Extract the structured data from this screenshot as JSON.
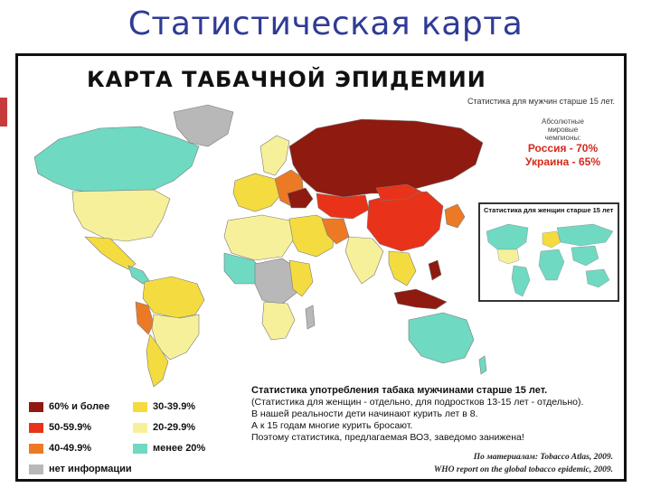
{
  "slide": {
    "title": "Статистическая карта"
  },
  "poster": {
    "title": "КАРТА ТАБАЧНОЙ ЭПИДЕМИИ",
    "subtitle_men": "Статистика для мужчин старше 15 лет.",
    "champions": {
      "caption": [
        "Абсолютные",
        "мировые",
        "чемпионы:"
      ],
      "russia": "Россия - 70%",
      "ukraine": "Украина - 65%"
    },
    "inset_caption": "Статистика для женщин старше 15 лет"
  },
  "legend": [
    {
      "label": "60% и более",
      "color": "#8e1a10"
    },
    {
      "label": "50-59.9%",
      "color": "#e8331a"
    },
    {
      "label": "40-49.9%",
      "color": "#ec7a25"
    },
    {
      "label": "нет информации",
      "color": "#b8b8b8"
    },
    {
      "label": "30-39.9%",
      "color": "#f4dc40"
    },
    {
      "label": "20-29.9%",
      "color": "#f7f09a"
    },
    {
      "label": "менее 20%",
      "color": "#6fd9c2"
    }
  ],
  "notes": {
    "heading": "Статистика употребления табака мужчинами старше 15 лет.",
    "lines": [
      "(Статистика для женщин - отдельно, для подростков 13-15 лет - отдельно).",
      "В нашей реальности дети начинают курить лет в 8.",
      "А к 15 годам многие курить бросают.",
      "Поэтому статистика, предлагаемая ВОЗ, заведомо занижена!"
    ]
  },
  "credits": [
    "По материалам: Tobacco Atlas, 2009.",
    "WHO report on the global tobacco epidemic, 2009."
  ]
}
